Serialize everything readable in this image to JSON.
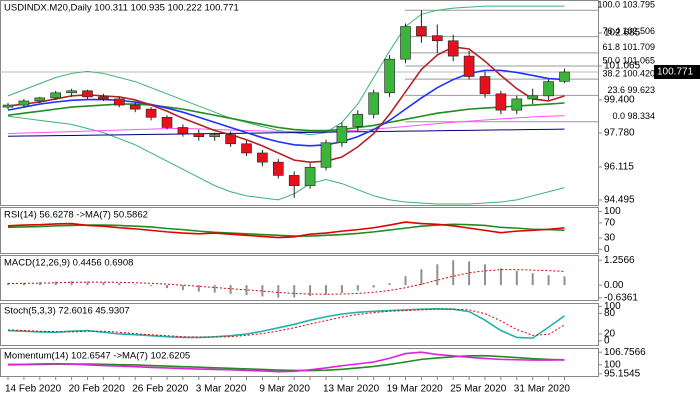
{
  "chart_data": [
    {
      "type": "candlestick",
      "title": "USDINDX.M20,Daily  100.311 100.935 100.222 100.771",
      "categories": [
        "14 Feb 2020",
        null,
        null,
        null,
        "20 Feb 2020",
        null,
        null,
        null,
        "26 Feb 2020",
        null,
        null,
        null,
        "3 Mar 2020",
        null,
        null,
        null,
        "9 Mar 2020",
        null,
        null,
        null,
        "13 Mar 2020",
        null,
        null,
        null,
        "19 Mar 2020",
        null,
        null,
        null,
        "25 Mar 2020",
        null,
        null,
        null,
        "31 Mar 2020",
        null,
        null,
        null
      ],
      "open": [
        99.05,
        99.15,
        99.35,
        99.5,
        99.75,
        99.85,
        99.55,
        99.45,
        99.15,
        98.95,
        98.55,
        98.05,
        97.75,
        97.6,
        97.7,
        97.25,
        96.8,
        96.35,
        95.7,
        95.2,
        96.1,
        97.3,
        98.1,
        98.7,
        99.75,
        101.4,
        103.0,
        102.55,
        102.3,
        101.55,
        100.55,
        99.7,
        98.9,
        99.45,
        99.6,
        100.311
      ],
      "high": [
        99.25,
        99.45,
        99.55,
        99.85,
        99.95,
        99.9,
        99.7,
        99.55,
        99.3,
        99.05,
        98.65,
        98.2,
        97.95,
        97.8,
        97.85,
        97.4,
        96.95,
        96.5,
        95.9,
        96.3,
        97.45,
        98.3,
        98.9,
        99.9,
        101.6,
        103.15,
        103.8,
        103.1,
        102.6,
        101.8,
        100.8,
        99.85,
        99.6,
        99.95,
        100.4,
        100.935
      ],
      "low": [
        98.95,
        99.05,
        99.25,
        99.4,
        99.55,
        99.45,
        99.35,
        99.05,
        98.8,
        98.4,
        97.95,
        97.6,
        97.4,
        97.4,
        97.1,
        96.65,
        96.15,
        95.55,
        94.6,
        95.05,
        95.95,
        97.1,
        97.85,
        98.5,
        99.55,
        101.2,
        102.2,
        101.7,
        101.3,
        100.4,
        99.5,
        98.7,
        98.7,
        99.2,
        99.4,
        100.222
      ],
      "close": [
        99.15,
        99.35,
        99.5,
        99.75,
        99.85,
        99.55,
        99.45,
        99.15,
        98.95,
        98.55,
        98.05,
        97.75,
        97.6,
        97.7,
        97.25,
        96.8,
        96.35,
        95.7,
        95.2,
        96.1,
        97.3,
        98.1,
        98.7,
        99.75,
        101.4,
        103.0,
        102.55,
        102.3,
        101.55,
        100.55,
        99.7,
        98.9,
        99.45,
        99.6,
        100.3,
        100.771
      ],
      "up_color": "#3cb43c",
      "down_color": "#e8101a",
      "series": [
        {
          "color": "#3cb371",
          "values": [
            99.6,
            99.9,
            100.2,
            100.5,
            100.7,
            100.8,
            100.7,
            100.5,
            100.3,
            100.0,
            99.7,
            99.4,
            99.1,
            98.8,
            98.5,
            98.3,
            98.1,
            97.9,
            97.8,
            97.7,
            97.8,
            98.3,
            99.2,
            100.5,
            101.8,
            103.0,
            103.6,
            103.8,
            103.9,
            103.95,
            104.0,
            104.0,
            104.0,
            104.0,
            104.0,
            104.0
          ]
        },
        {
          "color": "#3cb371",
          "values": [
            98.6,
            98.5,
            98.4,
            98.3,
            98.2,
            98.0,
            97.8,
            97.5,
            97.2,
            96.8,
            96.4,
            96.0,
            95.6,
            95.2,
            94.9,
            94.7,
            94.6,
            94.5,
            94.8,
            95.3,
            95.5,
            95.3,
            95.0,
            94.7,
            94.5,
            94.4,
            94.35,
            94.3,
            94.3,
            94.3,
            94.35,
            94.4,
            94.5,
            94.7,
            94.9,
            95.1
          ]
        },
        {
          "color": "#ff55ff",
          "values": [
            97.75,
            97.78,
            97.8,
            97.82,
            97.85,
            97.87,
            97.9,
            97.92,
            97.95,
            97.97,
            98.0,
            98.0,
            97.98,
            97.95,
            97.92,
            97.9,
            97.88,
            97.86,
            97.85,
            97.85,
            97.86,
            97.88,
            97.92,
            97.97,
            98.03,
            98.1,
            98.17,
            98.24,
            98.3,
            98.36,
            98.42,
            98.47,
            98.52,
            98.57,
            98.6,
            98.63
          ]
        },
        {
          "color": "#000080",
          "values": [
            97.62,
            97.63,
            97.64,
            97.65,
            97.66,
            97.67,
            97.68,
            97.69,
            97.7,
            97.71,
            97.72,
            97.73,
            97.74,
            97.75,
            97.76,
            97.77,
            97.78,
            97.79,
            97.8,
            97.81,
            97.82,
            97.83,
            97.84,
            97.85,
            97.86,
            97.87,
            97.88,
            97.89,
            97.9,
            97.91,
            97.92,
            97.93,
            97.94,
            97.95,
            97.96,
            97.97
          ]
        },
        {
          "color": "#228b22",
          "values": [
            98.65,
            98.75,
            98.85,
            98.95,
            99.05,
            99.1,
            99.15,
            99.2,
            99.2,
            99.15,
            99.05,
            98.95,
            98.8,
            98.65,
            98.5,
            98.35,
            98.2,
            98.05,
            97.95,
            97.9,
            97.9,
            97.95,
            98.05,
            98.15,
            98.3,
            98.45,
            98.6,
            98.75,
            98.85,
            98.95,
            99.0,
            99.05,
            99.1,
            99.15,
            99.2,
            99.25
          ]
        },
        {
          "color": "#1e32ff",
          "values": [
            98.9,
            99.05,
            99.2,
            99.3,
            99.38,
            99.42,
            99.42,
            99.38,
            99.3,
            99.18,
            99.0,
            98.8,
            98.55,
            98.3,
            98.05,
            97.8,
            97.55,
            97.35,
            97.2,
            97.15,
            97.2,
            97.35,
            97.6,
            97.95,
            98.4,
            98.95,
            99.5,
            100.0,
            100.4,
            100.7,
            100.85,
            100.85,
            100.75,
            100.6,
            100.45,
            100.4
          ]
        },
        {
          "color": "#b22222",
          "values": [
            99.1,
            99.2,
            99.3,
            99.45,
            99.6,
            99.65,
            99.6,
            99.55,
            99.4,
            99.15,
            98.85,
            98.5,
            98.2,
            97.9,
            97.7,
            97.45,
            97.15,
            96.8,
            96.45,
            96.35,
            96.4,
            96.6,
            97.1,
            97.75,
            98.7,
            99.8,
            100.9,
            101.6,
            102.0,
            101.9,
            101.3,
            100.6,
            99.95,
            99.45,
            99.35,
            99.6
          ]
        }
      ],
      "fibo": [
        {
          "label": "100.0 103.795",
          "price": 103.795
        },
        {
          "label": "76.4 102.506",
          "price": 102.506
        },
        {
          "label": "61.8 101.709",
          "price": 101.709
        },
        {
          "label": "50.0 101.065",
          "price": 101.065
        },
        {
          "label": "38.2 100.420",
          "price": 100.42
        },
        {
          "label": "23.6 99.623",
          "price": 99.623
        },
        {
          "label": "0.0 98.334",
          "price": 98.334
        }
      ],
      "ylim": [
        94.25,
        104.3
      ],
      "yticks": [
        102.685,
        101.065,
        {
          "value": 99.4,
          "label": "99.400"
        },
        {
          "value": 97.78,
          "label": "97.780"
        },
        96.115,
        94.495
      ]
    },
    {
      "type": "line",
      "title": "RSI(14) 56.6278 ->MA(7) 50.5862",
      "series": [
        {
          "color": "#228b22",
          "style": "solid",
          "values": [
            58,
            59,
            60,
            62,
            63,
            64,
            64,
            63,
            61,
            59,
            55,
            52,
            48,
            45,
            43,
            41,
            39,
            37,
            35,
            35,
            37,
            39,
            42,
            46,
            51,
            56,
            61,
            64,
            66,
            65,
            63,
            58,
            56,
            53,
            52,
            50.5862
          ]
        },
        {
          "color": "#e00000",
          "style": "solid",
          "values": [
            62,
            64,
            65,
            67,
            68,
            63,
            61,
            57,
            54,
            50,
            46,
            43,
            41,
            43,
            40,
            37,
            34,
            31,
            33,
            40,
            43,
            48,
            52,
            57,
            64,
            72,
            68,
            66,
            62,
            56,
            50,
            44,
            48,
            50,
            53,
            56.6278
          ]
        }
      ],
      "ylim": [
        -10,
        112
      ],
      "yticks": [
        100,
        70,
        30,
        0
      ]
    },
    {
      "type": "line",
      "title": "MACD(12,26,9) 0.4456 0.6908",
      "series": [
        {
          "color": "#909090",
          "style": "bar",
          "values": [
            0.1,
            0.12,
            0.15,
            0.18,
            0.2,
            0.18,
            0.15,
            0.1,
            0.03,
            -0.05,
            -0.15,
            -0.25,
            -0.33,
            -0.38,
            -0.44,
            -0.5,
            -0.57,
            -0.63,
            -0.62,
            -0.55,
            -0.48,
            -0.4,
            -0.28,
            -0.12,
            0.1,
            0.45,
            0.8,
            1.05,
            1.2566,
            1.2,
            1.05,
            0.85,
            0.72,
            0.6,
            0.5,
            0.4456
          ]
        },
        {
          "color": "#e00000",
          "style": "dotted",
          "values": [
            0.08,
            0.09,
            0.1,
            0.12,
            0.14,
            0.15,
            0.15,
            0.14,
            0.12,
            0.09,
            0.05,
            0.0,
            -0.06,
            -0.12,
            -0.18,
            -0.24,
            -0.3,
            -0.37,
            -0.42,
            -0.45,
            -0.46,
            -0.45,
            -0.42,
            -0.36,
            -0.27,
            -0.13,
            0.05,
            0.25,
            0.45,
            0.62,
            0.72,
            0.78,
            0.78,
            0.76,
            0.73,
            0.6908
          ]
        }
      ],
      "ylim": [
        -0.75,
        1.52
      ],
      "yticks": [
        1.2566,
        {
          "value": 0,
          "label": "0.00"
        },
        -0.6361
      ]
    },
    {
      "type": "line",
      "title": "Stoch(5,3,3) 72.6016 45.9307",
      "series": [
        {
          "color": "#20b2aa",
          "style": "solid",
          "values": [
            30,
            28,
            26,
            25,
            28,
            30,
            25,
            20,
            18,
            15,
            12,
            10,
            10,
            12,
            15,
            20,
            28,
            38,
            48,
            60,
            70,
            78,
            83,
            86,
            88,
            90,
            92,
            93,
            92,
            85,
            60,
            30,
            10,
            8,
            40,
            72.6016
          ]
        },
        {
          "color": "#e00000",
          "style": "dotted",
          "values": [
            32,
            30,
            28,
            27,
            26,
            28,
            28,
            25,
            21,
            18,
            15,
            12,
            11,
            11,
            12,
            16,
            21,
            29,
            38,
            49,
            59,
            69,
            77,
            82,
            86,
            88,
            90,
            92,
            92,
            90,
            79,
            58,
            33,
            16,
            19,
            45.9307
          ]
        }
      ],
      "ylim": [
        -12,
        110
      ],
      "yticks": [
        100,
        80,
        20,
        0
      ]
    },
    {
      "type": "line",
      "title": "Momentum(14) 102.6547 ->MA(7) 102.6205",
      "series": [
        {
          "color": "#228b22",
          "style": "solid",
          "values": [
            100.0,
            100.1,
            100.2,
            100.3,
            100.4,
            100.4,
            100.3,
            100.1,
            99.9,
            99.6,
            99.3,
            99.0,
            98.7,
            98.4,
            98.1,
            97.8,
            97.5,
            97.2,
            97.0,
            96.9,
            97.1,
            97.6,
            98.3,
            99.1,
            100.2,
            101.5,
            102.9,
            103.7,
            104.3,
            104.8,
            104.9,
            104.4,
            103.9,
            103.3,
            102.9,
            102.6205
          ]
        },
        {
          "color": "#dd22dd",
          "style": "solid",
          "values": [
            100.2,
            100.3,
            100.5,
            100.6,
            100.4,
            100.0,
            99.6,
            99.3,
            99.0,
            98.6,
            98.3,
            98.0,
            97.7,
            97.5,
            97.3,
            97.0,
            96.7,
            96.3,
            96.5,
            97.3,
            98.3,
            99.5,
            100.5,
            101.5,
            103.5,
            106.0,
            106.7566,
            105.5,
            104.8,
            104.0,
            103.4,
            102.9,
            102.7,
            102.5,
            102.5,
            102.6547
          ]
        }
      ],
      "ylim": [
        94,
        109
      ],
      "yticks": [
        106.7566,
        100,
        95.1545
      ]
    }
  ]
}
